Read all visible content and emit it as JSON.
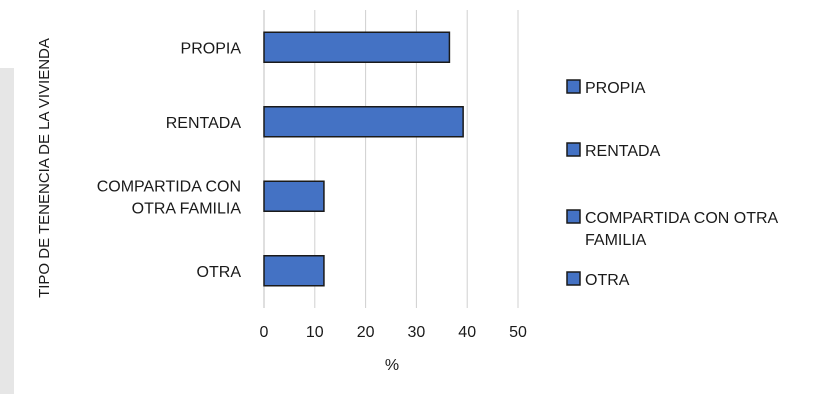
{
  "chart_data": {
    "type": "bar",
    "orientation": "horizontal",
    "categories": [
      "PROPIA",
      "RENTADA",
      "COMPARTIDA CON OTRA FAMILIA",
      "OTRA"
    ],
    "category_label_lines": [
      [
        "PROPIA"
      ],
      [
        "RENTADA"
      ],
      [
        "COMPARTIDA CON",
        "OTRA FAMILIA"
      ],
      [
        "OTRA"
      ]
    ],
    "values": [
      36.5,
      39.2,
      11.8,
      11.8
    ],
    "xlabel": "%",
    "ylabel": "TIPO DE TENENCIA DE LA VIVIENDA",
    "xlim": [
      0,
      50
    ],
    "xticks": [
      0,
      10,
      20,
      30,
      40,
      50
    ],
    "grid": "vertical",
    "legend": {
      "placement": "right",
      "entries": [
        [
          "PROPIA"
        ],
        [
          "RENTADA"
        ],
        [
          "COMPARTIDA CON OTRA",
          "FAMILIA"
        ],
        [
          "OTRA"
        ]
      ]
    },
    "colors": {
      "bar": "#4472c4",
      "bar_stroke": "#1a1a1a",
      "grid": "#d0d0d0",
      "axis": "#bfbfbf"
    }
  }
}
